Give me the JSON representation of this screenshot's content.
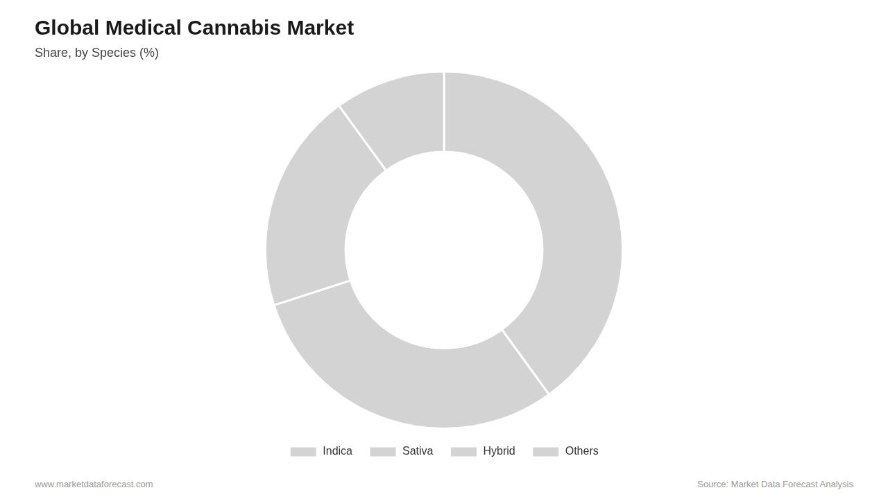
{
  "chart_data": {
    "type": "doughnut",
    "title": "Global Medical Cannabis Market",
    "subtitle": "Share, by Species (%)",
    "categories": [
      "Indica",
      "Sativa",
      "Hybrid",
      "Others"
    ],
    "values": [
      40,
      30,
      20,
      10
    ],
    "color": "#d3d3d3",
    "legend": "bottom",
    "annotations": [
      "www.marketdataforecast.com",
      "Source: Market Data Forecast Analysis"
    ]
  }
}
